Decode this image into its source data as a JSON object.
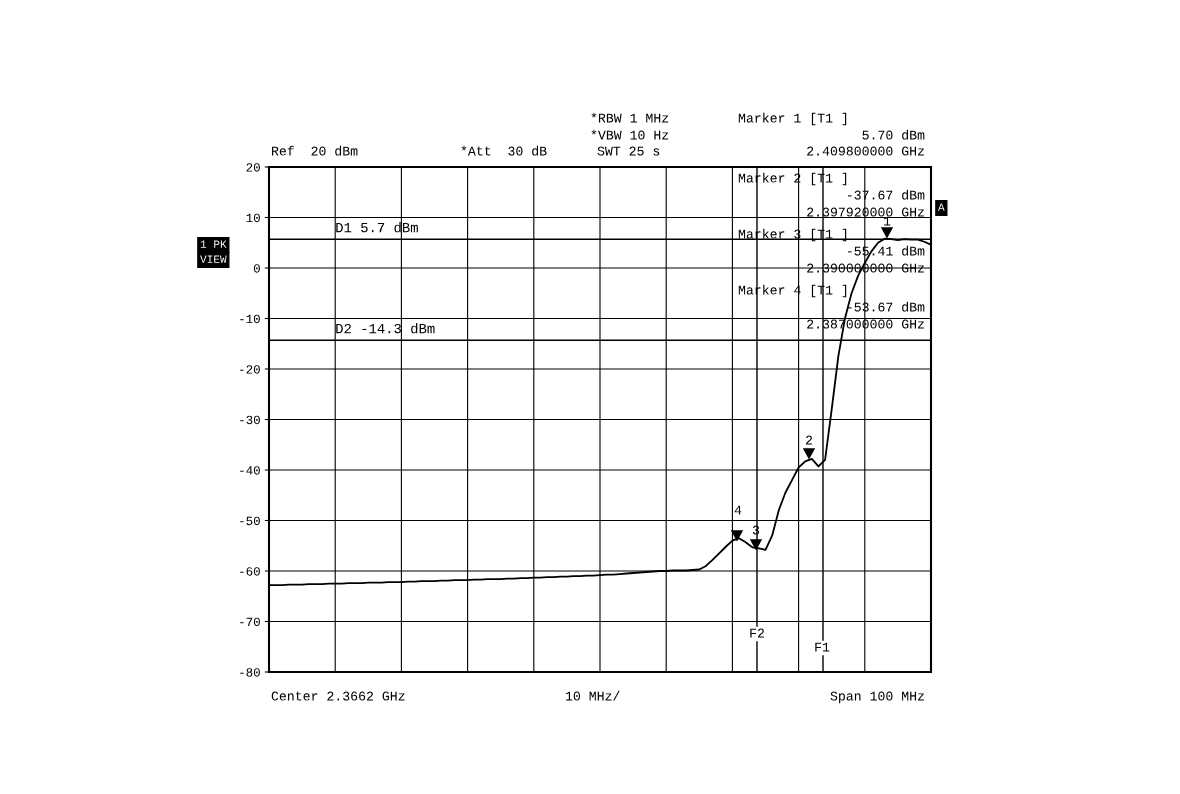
{
  "chart_data": {
    "type": "line",
    "categories": [
      null,
      null,
      null,
      null,
      null,
      null,
      null,
      null,
      null,
      null,
      null,
      null,
      null,
      null,
      null,
      null,
      null,
      null,
      null,
      null,
      null,
      null,
      null,
      null,
      null,
      null,
      null,
      null,
      null,
      null,
      null,
      null,
      null,
      null,
      null,
      null,
      null,
      null,
      null,
      null,
      null,
      null,
      null,
      null,
      null,
      null,
      null,
      null,
      null,
      null,
      null,
      null,
      null,
      null,
      null,
      null,
      null,
      null,
      null,
      null,
      null,
      null,
      null,
      null,
      null,
      null,
      null,
      null,
      null,
      null,
      null,
      null,
      null,
      null,
      null,
      null,
      null,
      null,
      null,
      null,
      null,
      null,
      null,
      null,
      null,
      null,
      null,
      null,
      null,
      null,
      null,
      null,
      null,
      null,
      null,
      null,
      null,
      null,
      null,
      null,
      null
    ],
    "series": [
      {
        "color": "#000000",
        "values": [
          -62.8,
          -62.8,
          -62.8,
          -62.7,
          -62.7,
          -62.7,
          -62.6,
          -62.6,
          -62.6,
          -62.5,
          -62.5,
          -62.5,
          -62.4,
          -62.4,
          -62.4,
          -62.3,
          -62.3,
          -62.3,
          -62.2,
          -62.2,
          -62.2,
          -62.1,
          -62.1,
          -62.0,
          -62.0,
          -62.0,
          -61.9,
          -61.9,
          -61.8,
          -61.8,
          -61.8,
          -61.7,
          -61.7,
          -61.6,
          -61.6,
          -61.6,
          -61.5,
          -61.5,
          -61.4,
          -61.4,
          -61.3,
          -61.3,
          -61.2,
          -61.2,
          -61.1,
          -61.1,
          -61.0,
          -61.0,
          -60.9,
          -60.9,
          -60.8,
          -60.7,
          -60.7,
          -60.6,
          -60.5,
          -60.4,
          -60.3,
          -60.2,
          -60.1,
          -60.0,
          -60.0,
          -59.9,
          -59.9,
          -59.9,
          -59.8,
          -59.7,
          -59.0,
          -57.8,
          -56.5,
          -55.2,
          -54.0,
          -53.5,
          -54.3,
          -55.3,
          -55.5,
          -55.8,
          -53.0,
          -48.0,
          -44.5,
          -42.0,
          -39.5,
          -38.3,
          -37.8,
          -39.3,
          -38.0,
          -28.0,
          -17.5,
          -10.0,
          -5.0,
          -1.5,
          1.0,
          3.3,
          5.0,
          5.8,
          5.7,
          5.5,
          5.7,
          5.6,
          5.6,
          5.2,
          4.6
        ]
      }
    ],
    "ylim": [
      -80,
      20
    ],
    "yticks": [
      20,
      10,
      0,
      -10,
      -20,
      -30,
      -40,
      -50,
      -60,
      -70,
      -80
    ],
    "grid": true,
    "ref_lines": [
      {
        "axis": "y",
        "value": 5.7,
        "label": "D1 5.7 dBm",
        "color": "#000000"
      },
      {
        "axis": "y",
        "value": -14.3,
        "label": "D2 -14.3 dBm",
        "color": "#000000"
      }
    ],
    "annotations": [
      "Ref  20 dBm",
      "*Att  30 dB",
      "*RBW 1 MHz",
      "*VBW 10 Hz",
      "SWT 25 s",
      "Marker 1 [T1 ]",
      "5.70 dBm",
      "2.409800000 GHz",
      "Marker 2 [T1 ]",
      "-37.67 dBm",
      "2.397920000 GHz",
      "Marker 3 [T1 ]",
      "-55.41 dBm",
      "2.390000000 GHz",
      "Marker 4 [T1 ]",
      "-53.67 dBm",
      "2.387000000 GHz",
      "1 PK",
      "VIEW",
      "A",
      "Center 2.3662 GHz",
      "10 MHz/",
      "Span 100 MHz",
      "1",
      "2",
      "3",
      "4",
      "F2",
      "F1"
    ]
  }
}
